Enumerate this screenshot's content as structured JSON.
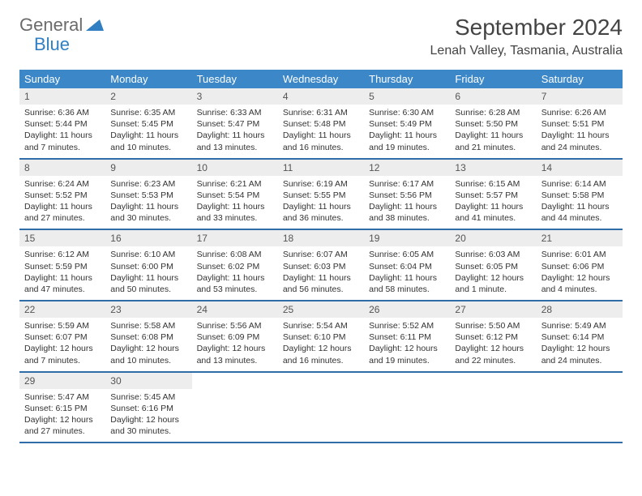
{
  "brand": {
    "part1": "General",
    "part2": "Blue"
  },
  "title": "September 2024",
  "location": "Lenah Valley, Tasmania, Australia",
  "colors": {
    "header_bg": "#3b87c8",
    "header_text": "#ffffff",
    "row_divider": "#2f6ca8",
    "daynum_bg": "#ededed",
    "text": "#333333",
    "brand_gray": "#6b6b6b",
    "brand_blue": "#2f7fc2",
    "background": "#ffffff"
  },
  "dow": [
    "Sunday",
    "Monday",
    "Tuesday",
    "Wednesday",
    "Thursday",
    "Friday",
    "Saturday"
  ],
  "days": [
    {
      "n": "1",
      "sr": "6:36 AM",
      "ss": "5:44 PM",
      "dl": "11 hours and 7 minutes."
    },
    {
      "n": "2",
      "sr": "6:35 AM",
      "ss": "5:45 PM",
      "dl": "11 hours and 10 minutes."
    },
    {
      "n": "3",
      "sr": "6:33 AM",
      "ss": "5:47 PM",
      "dl": "11 hours and 13 minutes."
    },
    {
      "n": "4",
      "sr": "6:31 AM",
      "ss": "5:48 PM",
      "dl": "11 hours and 16 minutes."
    },
    {
      "n": "5",
      "sr": "6:30 AM",
      "ss": "5:49 PM",
      "dl": "11 hours and 19 minutes."
    },
    {
      "n": "6",
      "sr": "6:28 AM",
      "ss": "5:50 PM",
      "dl": "11 hours and 21 minutes."
    },
    {
      "n": "7",
      "sr": "6:26 AM",
      "ss": "5:51 PM",
      "dl": "11 hours and 24 minutes."
    },
    {
      "n": "8",
      "sr": "6:24 AM",
      "ss": "5:52 PM",
      "dl": "11 hours and 27 minutes."
    },
    {
      "n": "9",
      "sr": "6:23 AM",
      "ss": "5:53 PM",
      "dl": "11 hours and 30 minutes."
    },
    {
      "n": "10",
      "sr": "6:21 AM",
      "ss": "5:54 PM",
      "dl": "11 hours and 33 minutes."
    },
    {
      "n": "11",
      "sr": "6:19 AM",
      "ss": "5:55 PM",
      "dl": "11 hours and 36 minutes."
    },
    {
      "n": "12",
      "sr": "6:17 AM",
      "ss": "5:56 PM",
      "dl": "11 hours and 38 minutes."
    },
    {
      "n": "13",
      "sr": "6:15 AM",
      "ss": "5:57 PM",
      "dl": "11 hours and 41 minutes."
    },
    {
      "n": "14",
      "sr": "6:14 AM",
      "ss": "5:58 PM",
      "dl": "11 hours and 44 minutes."
    },
    {
      "n": "15",
      "sr": "6:12 AM",
      "ss": "5:59 PM",
      "dl": "11 hours and 47 minutes."
    },
    {
      "n": "16",
      "sr": "6:10 AM",
      "ss": "6:00 PM",
      "dl": "11 hours and 50 minutes."
    },
    {
      "n": "17",
      "sr": "6:08 AM",
      "ss": "6:02 PM",
      "dl": "11 hours and 53 minutes."
    },
    {
      "n": "18",
      "sr": "6:07 AM",
      "ss": "6:03 PM",
      "dl": "11 hours and 56 minutes."
    },
    {
      "n": "19",
      "sr": "6:05 AM",
      "ss": "6:04 PM",
      "dl": "11 hours and 58 minutes."
    },
    {
      "n": "20",
      "sr": "6:03 AM",
      "ss": "6:05 PM",
      "dl": "12 hours and 1 minute."
    },
    {
      "n": "21",
      "sr": "6:01 AM",
      "ss": "6:06 PM",
      "dl": "12 hours and 4 minutes."
    },
    {
      "n": "22",
      "sr": "5:59 AM",
      "ss": "6:07 PM",
      "dl": "12 hours and 7 minutes."
    },
    {
      "n": "23",
      "sr": "5:58 AM",
      "ss": "6:08 PM",
      "dl": "12 hours and 10 minutes."
    },
    {
      "n": "24",
      "sr": "5:56 AM",
      "ss": "6:09 PM",
      "dl": "12 hours and 13 minutes."
    },
    {
      "n": "25",
      "sr": "5:54 AM",
      "ss": "6:10 PM",
      "dl": "12 hours and 16 minutes."
    },
    {
      "n": "26",
      "sr": "5:52 AM",
      "ss": "6:11 PM",
      "dl": "12 hours and 19 minutes."
    },
    {
      "n": "27",
      "sr": "5:50 AM",
      "ss": "6:12 PM",
      "dl": "12 hours and 22 minutes."
    },
    {
      "n": "28",
      "sr": "5:49 AM",
      "ss": "6:14 PM",
      "dl": "12 hours and 24 minutes."
    },
    {
      "n": "29",
      "sr": "5:47 AM",
      "ss": "6:15 PM",
      "dl": "12 hours and 27 minutes."
    },
    {
      "n": "30",
      "sr": "5:45 AM",
      "ss": "6:16 PM",
      "dl": "12 hours and 30 minutes."
    }
  ],
  "labels": {
    "sunrise": "Sunrise:",
    "sunset": "Sunset:",
    "daylight": "Daylight:"
  },
  "layout": {
    "leading_blanks": 0,
    "total_cells": 35
  }
}
